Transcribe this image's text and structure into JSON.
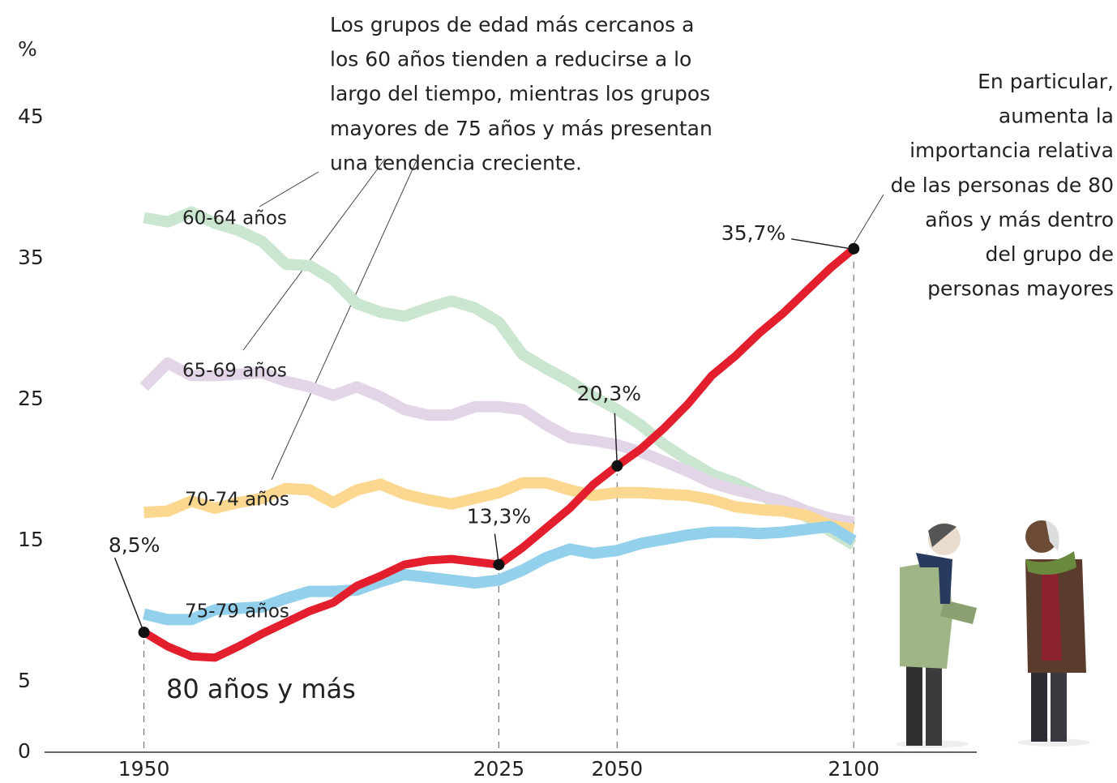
{
  "chart_data": {
    "type": "line",
    "y_unit_label": "%",
    "xlim": [
      1929,
      2126
    ],
    "ylim": [
      0,
      45
    ],
    "xticks": [
      1950,
      2025,
      2050,
      2100
    ],
    "yticks": [
      0,
      5,
      15,
      25,
      35,
      45
    ],
    "x": [
      1950,
      1955,
      1960,
      1965,
      1970,
      1975,
      1980,
      1985,
      1990,
      1995,
      2000,
      2005,
      2010,
      2015,
      2020,
      2025,
      2030,
      2035,
      2040,
      2045,
      2050,
      2055,
      2060,
      2065,
      2070,
      2075,
      2080,
      2085,
      2090,
      2095,
      2100
    ],
    "series": [
      {
        "name": "60-64 años",
        "color": "#cbe6d0",
        "label_color": "#5e7a5a",
        "values": [
          37.9,
          37.6,
          38.3,
          37.5,
          37.0,
          36.2,
          34.6,
          34.5,
          33.5,
          31.8,
          31.2,
          30.9,
          31.5,
          32.0,
          31.5,
          30.5,
          28.2,
          27.2,
          26.3,
          25.2,
          24.3,
          23.2,
          21.8,
          20.7,
          19.7,
          19.1,
          18.3,
          17.4,
          16.7,
          15.7,
          14.7
        ]
      },
      {
        "name": "65-69 años",
        "color": "#e3d5e8",
        "label_color": "#5a4fa0",
        "values": [
          25.9,
          27.6,
          26.7,
          26.7,
          26.8,
          26.9,
          26.3,
          25.9,
          25.3,
          25.9,
          25.2,
          24.3,
          23.9,
          23.9,
          24.5,
          24.5,
          24.3,
          23.2,
          22.3,
          22.1,
          21.8,
          21.3,
          20.6,
          19.9,
          19.1,
          18.6,
          18.2,
          17.8,
          17.1,
          16.6,
          16.3
        ]
      },
      {
        "name": "70-74 años",
        "color": "#fbd78f",
        "label_color": "#b8926a",
        "values": [
          17.0,
          17.1,
          17.8,
          17.3,
          17.7,
          18.0,
          18.7,
          18.6,
          17.7,
          18.6,
          19.0,
          18.3,
          17.9,
          17.6,
          18.0,
          18.4,
          19.1,
          19.1,
          18.6,
          18.2,
          18.4,
          18.4,
          18.3,
          18.2,
          17.9,
          17.4,
          17.2,
          17.1,
          16.8,
          16.1,
          15.8
        ]
      },
      {
        "name": "75-79 años",
        "color": "#92d0ec",
        "label_color": "#2a8fc8",
        "values": [
          9.8,
          9.4,
          9.4,
          10.1,
          10.2,
          10.3,
          10.9,
          11.4,
          11.4,
          11.5,
          12.1,
          12.6,
          12.4,
          12.2,
          12.0,
          12.2,
          12.9,
          13.8,
          14.4,
          14.1,
          14.3,
          14.8,
          15.1,
          15.4,
          15.6,
          15.6,
          15.5,
          15.6,
          15.8,
          16.0,
          15.0
        ]
      },
      {
        "name": "80 años y más",
        "color": "#e31e2d",
        "label_color": "#a7252c",
        "values": [
          8.5,
          7.5,
          6.8,
          6.7,
          7.5,
          8.4,
          9.2,
          10.0,
          10.6,
          11.8,
          12.5,
          13.3,
          13.6,
          13.7,
          13.5,
          13.3,
          14.5,
          15.9,
          17.3,
          19.0,
          20.3,
          21.5,
          23.0,
          24.7,
          26.7,
          28.1,
          29.7,
          31.1,
          32.7,
          34.3,
          35.7
        ],
        "value_labels": [
          "8,5%",
          null,
          null,
          null,
          null,
          null,
          null,
          null,
          null,
          null,
          null,
          null,
          null,
          null,
          null,
          "13,3%",
          null,
          null,
          null,
          null,
          "20,3%",
          null,
          null,
          null,
          null,
          null,
          null,
          null,
          null,
          null,
          "35,7%"
        ]
      }
    ],
    "annotations": [
      [
        "Los grupos de edad más cercanos a",
        "los 60 años tienden a reducirse a lo",
        "largo del tiempo, mientras los grupos",
        "mayores de 75 años y más presentan",
        "una tendencia creciente."
      ],
      [
        "En particular,",
        "aumenta la",
        "importancia relativa",
        "de las personas de 80",
        "años y más dentro",
        "del grupo de",
        "personas mayores"
      ]
    ]
  }
}
